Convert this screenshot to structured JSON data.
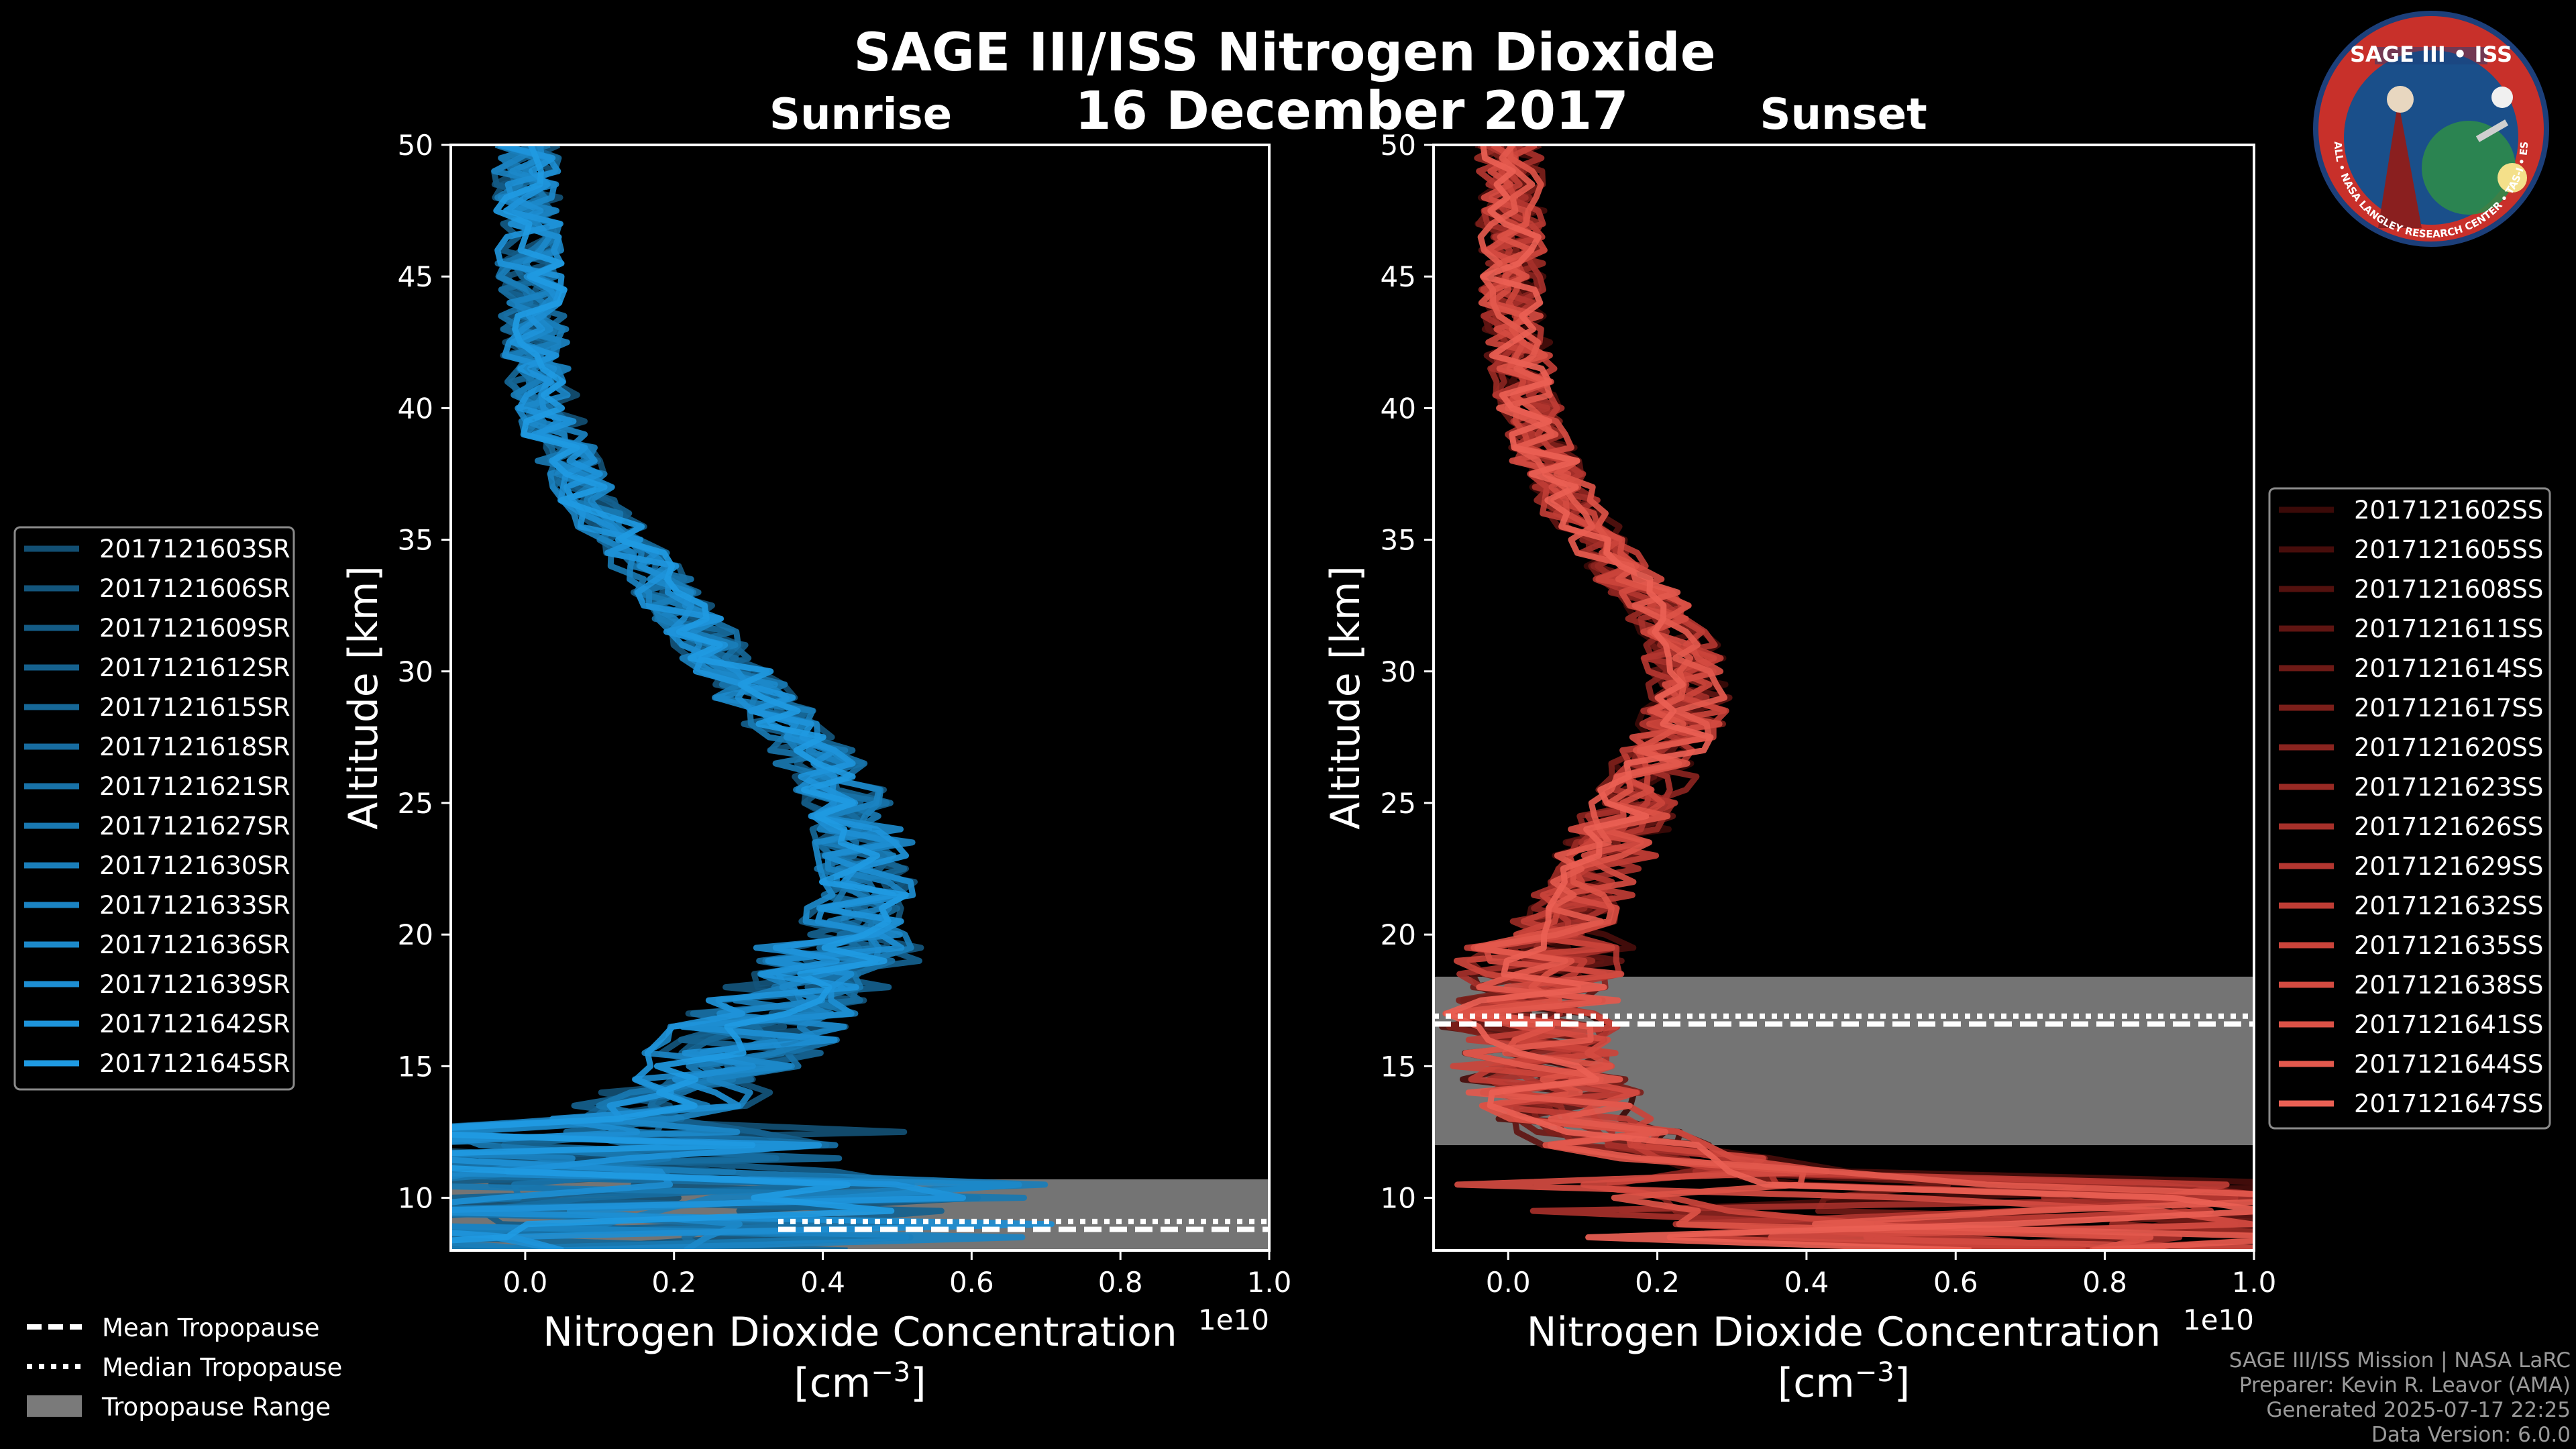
{
  "figure": {
    "title": "SAGE III/ISS Nitrogen Dioxide",
    "date": "16 December 2017",
    "credits": [
      "SAGE III/ISS Mission | NASA LaRC",
      "Preparer: Kevin R. Leavor (AMA)",
      "Generated 2025-07-17 22:25",
      "Data Version: 6.0.0"
    ],
    "logo": {
      "title": "SAGE III • ISS",
      "ring_text": "BALL • NASA LANGLEY RESEARCH CENTER • TAS-I • ESA"
    }
  },
  "tropopause_legend": [
    "Mean Tropopause",
    "Median Tropopause",
    "Tropopause Range"
  ],
  "colors": {
    "background": "#000000",
    "sunrise": "#1f8ad0",
    "sunset": "#e8584a",
    "tropopause_band": "#7a7a7a"
  },
  "chart_data": [
    {
      "type": "line",
      "subtitle": "Sunrise",
      "xlabel": "Nitrogen Dioxide Concentration",
      "xlabel_units": "[cm$^{-3}$]",
      "xlabel_units_display": [
        "[cm",
        "−3",
        "]"
      ],
      "ylabel": "Altitude [km]",
      "xlim": [
        -0.1,
        1.0
      ],
      "ylim": [
        8,
        50
      ],
      "x_scale_label": "1e10",
      "xticks": [
        0.0,
        0.2,
        0.4,
        0.6,
        0.8,
        1.0
      ],
      "xtick_labels": [
        "0.0",
        "0.2",
        "0.4",
        "0.6",
        "0.8",
        "1.0"
      ],
      "yticks": [
        10,
        15,
        20,
        25,
        30,
        35,
        40,
        45,
        50
      ],
      "ytick_labels": [
        "10",
        "15",
        "20",
        "25",
        "30",
        "35",
        "40",
        "45",
        "50"
      ],
      "tropopause": {
        "mean": 8.8,
        "median": 9.1,
        "range": [
          8.0,
          10.7
        ]
      },
      "series_names": [
        "2017121603SR",
        "2017121606SR",
        "2017121609SR",
        "2017121612SR",
        "2017121615SR",
        "2017121618SR",
        "2017121621SR",
        "2017121627SR",
        "2017121630SR",
        "2017121633SR",
        "2017121636SR",
        "2017121639SR",
        "2017121642SR",
        "2017121645SR"
      ],
      "series_colors": [
        "#124f73",
        "#13557c",
        "#145b85",
        "#15618e",
        "#166797",
        "#176ca0",
        "#1872a8",
        "#1978b1",
        "#1a7eba",
        "#1b83c2",
        "#1c89ca",
        "#1d8ed2",
        "#1e94da",
        "#1f9ae2"
      ],
      "mean_profile": {
        "alt": [
          8,
          9,
          10,
          11,
          12,
          13,
          14,
          15,
          16,
          17,
          18,
          19,
          20,
          21,
          22,
          23,
          24,
          25,
          26,
          27,
          28,
          29,
          30,
          31,
          32,
          33,
          34,
          35,
          36,
          37,
          38,
          39,
          40,
          41,
          42,
          43,
          44,
          45,
          46,
          47,
          48,
          49,
          50
        ],
        "value": [
          0.3,
          0.25,
          0.2,
          0.12,
          0.08,
          0.15,
          0.22,
          0.26,
          0.3,
          0.33,
          0.37,
          0.41,
          0.44,
          0.45,
          0.46,
          0.46,
          0.45,
          0.43,
          0.41,
          0.38,
          0.35,
          0.31,
          0.28,
          0.25,
          0.22,
          0.19,
          0.16,
          0.13,
          0.1,
          0.08,
          0.06,
          0.04,
          0.03,
          0.02,
          0.015,
          0.012,
          0.01,
          0.008,
          0.006,
          0.005,
          0.004,
          0.003,
          0.002
        ]
      }
    },
    {
      "type": "line",
      "subtitle": "Sunset",
      "xlabel": "Nitrogen Dioxide Concentration",
      "xlabel_units": "[cm$^{-3}$]",
      "xlabel_units_display": [
        "[cm",
        "−3",
        "]"
      ],
      "ylabel": "Altitude [km]",
      "xlim": [
        -0.1,
        1.0
      ],
      "ylim": [
        8,
        50
      ],
      "x_scale_label": "1e10",
      "xticks": [
        0.0,
        0.2,
        0.4,
        0.6,
        0.8,
        1.0
      ],
      "xtick_labels": [
        "0.0",
        "0.2",
        "0.4",
        "0.6",
        "0.8",
        "1.0"
      ],
      "yticks": [
        10,
        15,
        20,
        25,
        30,
        35,
        40,
        45,
        50
      ],
      "ytick_labels": [
        "10",
        "15",
        "20",
        "25",
        "30",
        "35",
        "40",
        "45",
        "50"
      ],
      "tropopause": {
        "mean": 16.6,
        "median": 16.9,
        "range": [
          12.0,
          18.4
        ]
      },
      "series_names": [
        "2017121602SS",
        "2017121605SS",
        "2017121608SS",
        "2017121611SS",
        "2017121614SS",
        "2017121617SS",
        "2017121620SS",
        "2017121623SS",
        "2017121626SS",
        "2017121629SS",
        "2017121632SS",
        "2017121635SS",
        "2017121638SS",
        "2017121641SS",
        "2017121644SS",
        "2017121647SS"
      ],
      "series_colors": [
        "#3b0a08",
        "#470d0b",
        "#53110e",
        "#601512",
        "#6e1a16",
        "#7c1f1a",
        "#8a241f",
        "#982a24",
        "#a6302a",
        "#b33630",
        "#bf3d35",
        "#cb443b",
        "#d44b41",
        "#dc5247",
        "#e3594d",
        "#ea6054"
      ],
      "mean_profile": {
        "alt": [
          8,
          9,
          10,
          11,
          12,
          13,
          14,
          15,
          16,
          17,
          18,
          19,
          20,
          21,
          22,
          23,
          24,
          25,
          26,
          27,
          28,
          29,
          30,
          31,
          32,
          33,
          34,
          35,
          36,
          37,
          38,
          39,
          40,
          41,
          42,
          43,
          44,
          45,
          46,
          47,
          48,
          49,
          50
        ],
        "value": [
          0.6,
          0.6,
          0.55,
          0.35,
          0.15,
          0.1,
          0.06,
          0.04,
          0.03,
          0.03,
          0.04,
          0.05,
          0.07,
          0.09,
          0.11,
          0.13,
          0.15,
          0.17,
          0.19,
          0.21,
          0.23,
          0.24,
          0.24,
          0.23,
          0.21,
          0.18,
          0.15,
          0.12,
          0.09,
          0.07,
          0.05,
          0.04,
          0.03,
          0.02,
          0.015,
          0.01,
          0.008,
          0.006,
          0.005,
          0.004,
          0.003,
          0.002,
          0.001
        ]
      }
    }
  ]
}
